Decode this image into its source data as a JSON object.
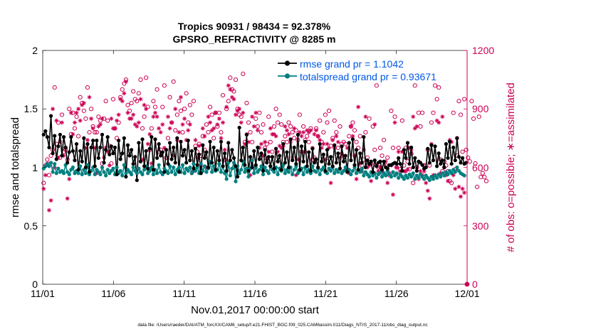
{
  "chart_data": {
    "type": "line",
    "title": "Tropics 90931 / 98434 = 92.378%",
    "subtitle": "GPSRO_REFRACTIVITY @ 8285 m",
    "xlabel": "Nov.01,2017 00:00:00 start",
    "ylabel": "rmse and totalspread",
    "y2label": "# of obs: o=possible; ∗=assimilated",
    "footer": "data file: /Users/raeder/DAI/ATM_forcXX/CAM6_setup/f.e21.FHIST_BGC.f09_025.CAM6assim.011/Diags_NTrS_2017-11/obs_diag_output.nc",
    "xlim": [
      0,
      30
    ],
    "ylim": [
      0,
      2
    ],
    "y2lim": [
      0,
      1200
    ],
    "xticks": [
      0,
      5,
      10,
      15,
      20,
      25,
      30
    ],
    "xtick_labels": [
      "11/01",
      "11/06",
      "11/11",
      "11/16",
      "11/21",
      "11/26",
      "12/01"
    ],
    "yticks": [
      0,
      0.5,
      1,
      1.5,
      2
    ],
    "ytick_labels": [
      "0",
      "0.5",
      "1",
      "1.5",
      "2"
    ],
    "y2ticks": [
      0,
      300,
      600,
      900,
      1200
    ],
    "y2tick_labels": [
      "0",
      "300",
      "600",
      "900",
      "1200"
    ],
    "legend_position": "top-right",
    "colors": {
      "rmse": "#000000",
      "spread": "#008080",
      "obs": "#cc0055",
      "legend_text": "#0057e7"
    },
    "series": [
      {
        "name": "rmse grand pr = 1.1042",
        "axis": "left",
        "marker": "dot",
        "values": [
          1.28,
          1.31,
          1.26,
          1.17,
          1.44,
          1.12,
          1.27,
          1.07,
          1.18,
          1.28,
          1.1,
          1.26,
          1.17,
          1.04,
          1.13,
          1.26,
          1.14,
          1.06,
          1.2,
          0.98,
          1.14,
          1.05,
          1.25,
          1.0,
          1.2,
          0.96,
          1.17,
          1.23,
          1.01,
          1.23,
          1.08,
          1.17,
          1.28,
          1.04,
          1.15,
          1.26,
          1.11,
          1.18,
          1.12,
          1.17,
          0.94,
          1.23,
          1.07,
          1.12,
          1.25,
          0.92,
          1.19,
          1.1,
          1.15,
          1.03,
          1.09,
          0.89,
          1.21,
          1.05,
          1.24,
          1.01,
          1.14,
          0.99,
          1.16,
          1.26,
          0.98,
          1.24,
          1.08,
          1.2,
          1.1,
          1.13,
          0.96,
          1.15,
          1.03,
          1.21,
          1.07,
          1.17,
          1.04,
          1.25,
          0.96,
          1.22,
          1.1,
          1.15,
          1.04,
          1.23,
          1.06,
          1.14,
          0.99,
          1.16,
          1.02,
          1.11,
          0.95,
          1.19,
          1.08,
          1.13,
          1.0,
          1.22,
          1.04,
          1.17,
          0.98,
          1.14,
          1.06,
          1.22,
          1.01,
          1.12,
          0.97,
          1.21,
          1.06,
          1.15,
          1.08,
          1.01,
          0.92,
          1.34,
          1.06,
          1.17,
          1.02,
          1.28,
          0.97,
          1.09,
          1.0,
          1.14,
          1.02,
          1.17,
          1.07,
          1.12,
          0.97,
          1.15,
          1.04,
          1.09,
          1.01,
          1.09,
          0.99,
          1.16,
          1.05,
          1.1,
          0.98,
          1.2,
          1.04,
          1.13,
          1.0,
          1.24,
          1.06,
          1.17,
          1.03,
          1.28,
          0.98,
          1.18,
          1.05,
          1.22,
          1.01,
          1.13,
          0.97,
          1.16,
          1.04,
          1.07,
          1.0,
          1.2,
          1.05,
          1.11,
          0.97,
          1.15,
          1.03,
          1.09,
          1.01,
          1.19,
          1.04,
          1.12,
          0.99,
          1.18,
          1.05,
          1.1,
          0.96,
          1.21,
          1.06,
          1.24,
          1.02,
          1.15,
          0.98,
          1.12,
          1.04,
          1.26,
          1.0,
          1.06,
          1.03,
          1.05,
          0.96,
          1.06,
          1.01,
          1.04,
          1.05,
          0.98,
          1.05,
          1.0,
          0.99,
          1.02,
          1.02,
          1.03,
          1.04,
          1.03,
          1.08,
          1.03,
          0.97,
          1.15,
          1.08,
          1.21,
          1.03,
          1.17,
          1.0,
          1.08,
          0.97,
          1.05,
          1.04,
          1.02,
          0.99,
          1.0,
          1.16,
          1.04,
          1.19,
          1.06,
          1.18,
          1.01,
          1.12,
          1.03,
          1.06,
          1.0,
          1.2,
          1.08,
          1.22,
          1.03,
          1.17,
          1.06,
          1.25,
          1.09,
          1.04,
          1.08,
          1.03,
          1.04
        ]
      },
      {
        "name": "totalspread grand pr = 0.93671",
        "axis": "left",
        "marker": "dot",
        "values": [
          0.99,
          1.01,
          1.03,
          1.01,
          1.04,
          0.96,
          1.03,
          0.95,
          0.99,
          0.96,
          0.97,
          0.95,
          1.02,
          0.96,
          0.94,
          0.98,
          1.0,
          0.95,
          0.97,
          0.95,
          1.01,
          0.94,
          0.98,
          0.95,
          1.02,
          0.94,
          0.97,
          1.0,
          0.94,
          0.98,
          0.96,
          0.94,
          1.0,
          0.96,
          0.93,
          0.98,
          0.95,
          0.97,
          0.99,
          0.94,
          1.0,
          0.95,
          0.97,
          0.93,
          1.02,
          0.95,
          0.98,
          0.96,
          0.94,
          1.0,
          0.97,
          0.95,
          0.99,
          0.96,
          0.94,
          0.98,
          1.01,
          0.95,
          0.97,
          1.0,
          0.94,
          0.98,
          0.95,
          1.02,
          0.96,
          0.94,
          0.99,
          0.97,
          0.95,
          1.01,
          0.96,
          1.0,
          0.94,
          0.98,
          1.0,
          0.96,
          1.02,
          0.95,
          0.99,
          0.97,
          1.0,
          0.95,
          1.03,
          0.97,
          1.0,
          0.95,
          1.03,
          0.97,
          1.01,
          0.96,
          0.99,
          1.05,
          0.96,
          1.01,
          0.97,
          0.98,
          1.03,
          0.96,
          1.01,
          0.95,
          0.9,
          1.04,
          0.93,
          0.99,
          1.04,
          0.88,
          1.01,
          0.95,
          0.98,
          1.05,
          0.96,
          0.99,
          0.92,
          0.99,
          1.06,
          0.95,
          1.0,
          0.96,
          0.98,
          1.01,
          0.94,
          1.0,
          0.97,
          0.95,
          1.01,
          0.98,
          0.96,
          1.0,
          0.94,
          0.99,
          0.97,
          1.02,
          0.95,
          0.98,
          0.96,
          1.0,
          0.94,
          0.98,
          1.01,
          0.95,
          0.97,
          0.99,
          0.94,
          1.0,
          0.96,
          0.98,
          0.95,
          1.01,
          0.97,
          0.96,
          0.99,
          0.94,
          0.98,
          1.0,
          0.96,
          0.95,
          0.99,
          0.97,
          1.0,
          0.95,
          0.98,
          0.96,
          0.99,
          0.95,
          0.97,
          1.0,
          0.96,
          0.98,
          0.94,
          0.97,
          1.0,
          0.95,
          0.98,
          0.96,
          0.99,
          0.93,
          0.96,
          0.94,
          0.92,
          0.96,
          0.93,
          0.95,
          0.91,
          0.94,
          0.96,
          0.92,
          0.95,
          0.93,
          0.97,
          0.94,
          0.92,
          0.96,
          0.93,
          0.95,
          0.91,
          0.94,
          0.92,
          0.9,
          0.93,
          0.91,
          0.94,
          0.92,
          0.95,
          0.9,
          0.93,
          0.91,
          0.94,
          0.92,
          0.9,
          0.93,
          0.91,
          0.89,
          0.92,
          0.9,
          0.93,
          0.91,
          0.94,
          0.92,
          0.95,
          0.93,
          0.96,
          0.94,
          0.97,
          0.95,
          0.98,
          0.96,
          1.0,
          0.97,
          0.95,
          0.94,
          0.93
        ]
      },
      {
        "name": "possible obs",
        "axis": "right",
        "marker": "circle",
        "values": [
          520,
          610,
          640,
          560,
          660,
          690,
          1010,
          720,
          830,
          650,
          870,
          680,
          690,
          640,
          900,
          770,
          880,
          800,
          860,
          760,
          960,
          930,
          890,
          850,
          1010,
          780,
          900,
          810,
          780,
          780,
          860,
          840,
          620,
          850,
          940,
          840,
          710,
          620,
          950,
          800,
          750,
          830,
          960,
          1000,
          1030,
          1050,
          920,
          890,
          930,
          990,
          950,
          940,
          980,
          1050,
          800,
          860,
          1060,
          910,
          690,
          800,
          940,
          910,
          1000,
          680,
          690,
          910,
          1020,
          650,
          750,
          960,
          830,
          1040,
          790,
          870,
          940,
          890,
          780,
          900,
          980,
          830,
          920,
          870,
          940,
          710,
          680,
          720,
          660,
          760,
          690,
          820,
          780,
          910,
          870,
          750,
          880,
          810,
          880,
          780,
          970,
          640,
          900,
          940,
          1060,
          1000,
          990,
          1050,
          900,
          870,
          860,
          1080,
          730,
          930,
          830,
          780,
          730,
          600,
          850,
          810,
          880,
          780,
          820,
          700,
          720,
          860,
          730,
          680,
          810,
          900,
          830,
          870,
          820,
          730,
          760,
          730,
          830,
          810,
          780,
          750,
          790,
          740,
          870,
          680,
          810,
          740,
          760,
          730,
          800,
          640,
          650,
          800,
          760,
          840,
          730,
          780,
          870,
          830,
          890,
          710,
          750,
          840,
          780,
          700,
          810,
          720,
          730,
          720,
          590,
          760,
          810,
          830,
          790,
          730,
          700,
          760,
          610,
          640,
          780,
          650,
          850,
          620,
          810,
          690,
          1020,
          600,
          700,
          660,
          740,
          610,
          650,
          560,
          890,
          700,
          860,
          600,
          700,
          590,
          840,
          610,
          700,
          630,
          590,
          670,
          520,
          1020,
          600,
          880,
          810,
          880,
          610,
          610,
          690,
          610,
          830,
          880,
          1020,
          950,
          1010,
          640,
          580,
          630,
          610,
          580,
          530,
          520,
          880,
          590,
          660,
          940,
          870,
          680,
          950,
          690,
          650,
          630,
          940,
          850,
          620,
          500,
          860,
          550,
          570,
          550,
          530
        ]
      },
      {
        "name": "assimilated obs",
        "axis": "right",
        "marker": "star",
        "values": [
          490,
          560,
          620,
          380,
          430,
          900,
          600,
          840,
          650,
          730,
          830,
          660,
          700,
          440,
          540,
          880,
          770,
          830,
          880,
          900,
          840,
          920,
          930,
          700,
          740,
          960,
          850,
          800,
          700,
          570,
          810,
          820,
          850,
          650,
          700,
          680,
          610,
          850,
          800,
          800,
          840,
          870,
          950,
          940,
          980,
          1040,
          880,
          850,
          850,
          870,
          820,
          810,
          830,
          950,
          640,
          920,
          900,
          720,
          770,
          620,
          860,
          880,
          860,
          800,
          780,
          820,
          700,
          690,
          860,
          800,
          830,
          660,
          900,
          740,
          780,
          960,
          820,
          850,
          740,
          790,
          820,
          570,
          580,
          740,
          650,
          710,
          610,
          800,
          760,
          600,
          860,
          830,
          790,
          800,
          880,
          820,
          850,
          750,
          830,
          690,
          910,
          1020,
          1000,
          960,
          950,
          870,
          890,
          900,
          830,
          880,
          720,
          770,
          730,
          560,
          860,
          810,
          880,
          790,
          700,
          720,
          660,
          730,
          640,
          680,
          800,
          770,
          770,
          760,
          680,
          710,
          700,
          710,
          810,
          790,
          770,
          730,
          650,
          800,
          560,
          640,
          780,
          760,
          780,
          680,
          790,
          780,
          790,
          700,
          770,
          790,
          760,
          740,
          700,
          720,
          640,
          720,
          700,
          520,
          740,
          700,
          760,
          730,
          650,
          670,
          660,
          590,
          700,
          570,
          810,
          760,
          660,
          540,
          910,
          620,
          580,
          690,
          860,
          600,
          610,
          530,
          570,
          820,
          610,
          580,
          600,
          580,
          570,
          630,
          520,
          570,
          610,
          460,
          830,
          600,
          680,
          580,
          680,
          580,
          580,
          590,
          700,
          690,
          860,
          800,
          810,
          540,
          580,
          560,
          580,
          520,
          480,
          440,
          720,
          560,
          560,
          840,
          830,
          570,
          860,
          600,
          560,
          530,
          740,
          730,
          560,
          490,
          750,
          500,
          450,
          490,
          470
        ]
      }
    ]
  }
}
